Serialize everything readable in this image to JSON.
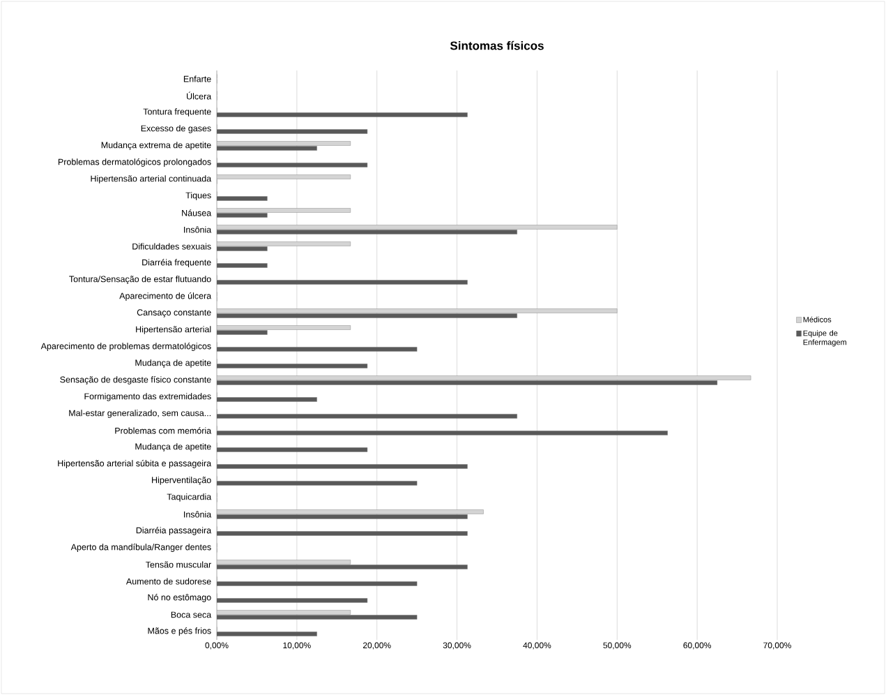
{
  "chart_data": {
    "type": "bar",
    "orientation": "horizontal",
    "title": "Sintomas físicos",
    "categories": [
      "Enfarte",
      "Úlcera",
      "Tontura frequente",
      "Excesso de gases",
      "Mudança extrema de apetite",
      "Problemas dermatológicos prolongados",
      "Hipertensão arterial continuada",
      "Tiques",
      "Náusea",
      "Insônia",
      "Dificuldades sexuais",
      "Diarréia frequente",
      "Tontura/Sensação de estar flutuando",
      "Aparecimento de úlcera",
      "Cansaço constante",
      "Hipertensão arterial",
      "Aparecimento de problemas dermatológicos",
      "Mudança de apetite",
      "Sensação de desgaste físico constante",
      "Formigamento das extremidades",
      "Mal-estar generalizado, sem causa...",
      "Problemas com memória",
      "Mudança de apetite",
      "Hipertensão arterial súbita e passageira",
      "Hiperventilação",
      "Taquicardia",
      "Insônia",
      "Diarréia passageira",
      "Aperto da mandíbula/Ranger dentes",
      "Tensão muscular",
      "Aumento de sudorese",
      "Nó no estômago",
      "Boca seca",
      "Mãos e pés frios"
    ],
    "series": [
      {
        "name": "Médicos",
        "color": "#d4d4d4",
        "values": [
          0,
          0,
          0,
          0,
          16.7,
          0,
          16.7,
          0,
          16.7,
          50,
          16.7,
          0,
          0,
          0,
          50,
          16.7,
          0,
          0,
          66.7,
          0,
          0,
          0,
          0,
          0,
          0,
          0,
          33.3,
          0,
          0,
          16.7,
          0,
          0,
          16.7,
          0
        ]
      },
      {
        "name": "Equipe de Enfermagem",
        "color": "#595959",
        "values": [
          0,
          0,
          31.3,
          18.8,
          12.5,
          18.8,
          0,
          6.3,
          6.3,
          37.5,
          6.3,
          6.3,
          31.3,
          0,
          37.5,
          6.3,
          25,
          18.8,
          62.5,
          12.5,
          37.5,
          56.3,
          18.8,
          31.3,
          25,
          0,
          31.3,
          31.3,
          0,
          31.3,
          25,
          18.8,
          25,
          12.5
        ]
      }
    ],
    "xlim": [
      0,
      70
    ],
    "xticks": [
      {
        "value": 0,
        "label": "0,00%"
      },
      {
        "value": 10,
        "label": "10,00%"
      },
      {
        "value": 20,
        "label": "20,00%"
      },
      {
        "value": 30,
        "label": "30,00%"
      },
      {
        "value": 40,
        "label": "40,00%"
      },
      {
        "value": 50,
        "label": "50,00%"
      },
      {
        "value": 60,
        "label": "60,00%"
      },
      {
        "value": 70,
        "label": "70,00%"
      }
    ],
    "grid": "x",
    "legend": "right"
  }
}
